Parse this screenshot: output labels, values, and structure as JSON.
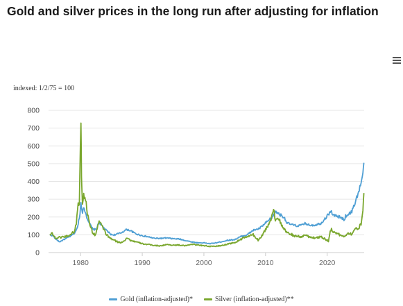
{
  "title": "Gold and silver prices in the long run after adjusting for inflation",
  "menu_icon": "hamburger-menu-icon",
  "chart_data": {
    "type": "line",
    "index_note": "indexed: 1/2/75 = 100",
    "xlim": [
      1974.8,
      2026.0
    ],
    "ylim": [
      0,
      800
    ],
    "x_ticks": [
      "1980",
      "1990",
      "2000",
      "2010",
      "2020"
    ],
    "y_ticks": [
      "0",
      "100",
      "200",
      "300",
      "400",
      "500",
      "600",
      "700",
      "800"
    ],
    "grid": true,
    "legend_position": "bottom-center",
    "series": [
      {
        "name": "Gold (inflation-adjusted)*",
        "color": "#4f9fd4",
        "points": [
          [
            1975.0,
            100
          ],
          [
            1975.5,
            95
          ],
          [
            1976.0,
            75
          ],
          [
            1976.6,
            60
          ],
          [
            1977.2,
            72
          ],
          [
            1977.8,
            82
          ],
          [
            1978.5,
            95
          ],
          [
            1979.0,
            110
          ],
          [
            1979.5,
            140
          ],
          [
            1979.9,
            220
          ],
          [
            1980.05,
            280
          ],
          [
            1980.3,
            230
          ],
          [
            1980.6,
            250
          ],
          [
            1981.0,
            200
          ],
          [
            1981.5,
            160
          ],
          [
            1982.0,
            130
          ],
          [
            1982.5,
            130
          ],
          [
            1983.0,
            170
          ],
          [
            1983.5,
            150
          ],
          [
            1984.0,
            130
          ],
          [
            1984.5,
            115
          ],
          [
            1985.0,
            100
          ],
          [
            1985.5,
            100
          ],
          [
            1986.0,
            105
          ],
          [
            1986.5,
            110
          ],
          [
            1987.0,
            120
          ],
          [
            1987.5,
            130
          ],
          [
            1988.0,
            125
          ],
          [
            1988.5,
            115
          ],
          [
            1989.0,
            105
          ],
          [
            1990.0,
            95
          ],
          [
            1991.0,
            88
          ],
          [
            1992.0,
            80
          ],
          [
            1993.0,
            80
          ],
          [
            1994.0,
            82
          ],
          [
            1995.0,
            78
          ],
          [
            1996.0,
            76
          ],
          [
            1997.0,
            68
          ],
          [
            1998.0,
            60
          ],
          [
            1999.0,
            55
          ],
          [
            2000.0,
            55
          ],
          [
            2001.0,
            50
          ],
          [
            2002.0,
            55
          ],
          [
            2003.0,
            62
          ],
          [
            2004.0,
            70
          ],
          [
            2005.0,
            73
          ],
          [
            2006.0,
            90
          ],
          [
            2007.0,
            100
          ],
          [
            2008.0,
            125
          ],
          [
            2009.0,
            135
          ],
          [
            2010.0,
            165
          ],
          [
            2011.0,
            195
          ],
          [
            2011.7,
            230
          ],
          [
            2012.5,
            210
          ],
          [
            2013.0,
            200
          ],
          [
            2013.5,
            165
          ],
          [
            2014.0,
            160
          ],
          [
            2015.0,
            150
          ],
          [
            2016.0,
            155
          ],
          [
            2016.5,
            165
          ],
          [
            2017.0,
            155
          ],
          [
            2018.0,
            155
          ],
          [
            2019.0,
            165
          ],
          [
            2020.0,
            205
          ],
          [
            2020.6,
            235
          ],
          [
            2021.0,
            210
          ],
          [
            2022.0,
            200
          ],
          [
            2022.8,
            185
          ],
          [
            2023.0,
            205
          ],
          [
            2024.0,
            230
          ],
          [
            2024.5,
            280
          ],
          [
            2025.0,
            330
          ],
          [
            2025.5,
            390
          ],
          [
            2025.8,
            450
          ],
          [
            2025.95,
            505
          ]
        ]
      },
      {
        "name": "Silver (inflation-adjusted)**",
        "color": "#7aa72e",
        "points": [
          [
            1975.0,
            100
          ],
          [
            1975.3,
            115
          ],
          [
            1975.7,
            90
          ],
          [
            1976.0,
            80
          ],
          [
            1976.5,
            85
          ],
          [
            1977.0,
            88
          ],
          [
            1977.5,
            90
          ],
          [
            1978.0,
            95
          ],
          [
            1978.5,
            105
          ],
          [
            1979.0,
            120
          ],
          [
            1979.3,
            160
          ],
          [
            1979.6,
            290
          ],
          [
            1979.8,
            260
          ],
          [
            1979.95,
            610
          ],
          [
            1980.05,
            760
          ],
          [
            1980.15,
            450
          ],
          [
            1980.3,
            260
          ],
          [
            1980.5,
            320
          ],
          [
            1980.7,
            330
          ],
          [
            1980.9,
            270
          ],
          [
            1981.2,
            200
          ],
          [
            1981.6,
            150
          ],
          [
            1982.0,
            105
          ],
          [
            1982.4,
            100
          ],
          [
            1982.8,
            150
          ],
          [
            1983.0,
            175
          ],
          [
            1983.4,
            150
          ],
          [
            1983.8,
            130
          ],
          [
            1984.2,
            100
          ],
          [
            1984.8,
            80
          ],
          [
            1985.4,
            70
          ],
          [
            1986.0,
            60
          ],
          [
            1986.5,
            55
          ],
          [
            1987.2,
            70
          ],
          [
            1987.5,
            85
          ],
          [
            1988.0,
            70
          ],
          [
            1989.0,
            60
          ],
          [
            1990.0,
            50
          ],
          [
            1991.0,
            45
          ],
          [
            1992.0,
            40
          ],
          [
            1993.0,
            38
          ],
          [
            1994.0,
            45
          ],
          [
            1995.0,
            42
          ],
          [
            1996.0,
            42
          ],
          [
            1997.0,
            38
          ],
          [
            1998.0,
            48
          ],
          [
            1999.0,
            42
          ],
          [
            2000.0,
            40
          ],
          [
            2001.0,
            34
          ],
          [
            2002.0,
            36
          ],
          [
            2003.0,
            40
          ],
          [
            2004.0,
            50
          ],
          [
            2005.0,
            55
          ],
          [
            2006.0,
            75
          ],
          [
            2007.0,
            90
          ],
          [
            2008.0,
            100
          ],
          [
            2008.8,
            70
          ],
          [
            2009.5,
            100
          ],
          [
            2010.0,
            130
          ],
          [
            2010.8,
            175
          ],
          [
            2011.3,
            255
          ],
          [
            2011.6,
            180
          ],
          [
            2012.0,
            200
          ],
          [
            2012.5,
            160
          ],
          [
            2013.0,
            130
          ],
          [
            2013.5,
            110
          ],
          [
            2014.0,
            105
          ],
          [
            2015.0,
            90
          ],
          [
            2016.0,
            90
          ],
          [
            2016.5,
            100
          ],
          [
            2017.0,
            90
          ],
          [
            2018.0,
            82
          ],
          [
            2019.0,
            90
          ],
          [
            2020.2,
            65
          ],
          [
            2020.6,
            130
          ],
          [
            2021.0,
            120
          ],
          [
            2022.0,
            100
          ],
          [
            2022.8,
            90
          ],
          [
            2023.3,
            110
          ],
          [
            2024.0,
            105
          ],
          [
            2024.5,
            130
          ],
          [
            2025.0,
            135
          ],
          [
            2025.5,
            160
          ],
          [
            2025.8,
            250
          ],
          [
            2025.95,
            335
          ]
        ]
      }
    ]
  }
}
